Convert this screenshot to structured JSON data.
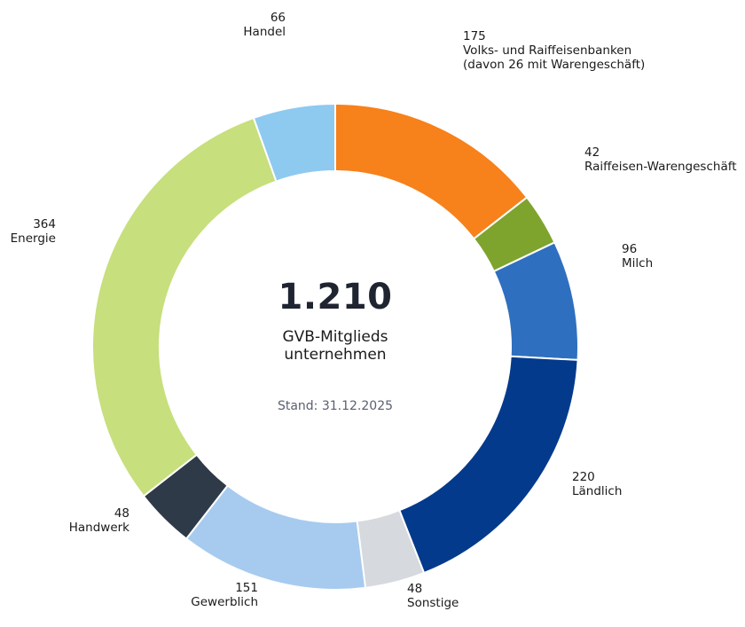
{
  "chart_data": {
    "type": "pie",
    "variant": "donut",
    "center": {
      "total": "1.210",
      "subtitle_line1": "GVB-Mitglieds",
      "subtitle_line2": "unternehmen",
      "stand": "Stand: 31.12.2025"
    },
    "slices": [
      {
        "label": "Volks- und Raiffeisenbanken",
        "label_line2": "(davon 26 mit Warengeschäft)",
        "value": 175,
        "color": "#f7811a"
      },
      {
        "label": "Raiffeisen-Warengeschäft",
        "value": 42,
        "color": "#7ea42d"
      },
      {
        "label": "Milch",
        "value": 96,
        "color": "#2f6fbf"
      },
      {
        "label": "Ländlich",
        "value": 220,
        "color": "#033a8c"
      },
      {
        "label": "Sonstige",
        "value": 48,
        "color": "#d6d9de"
      },
      {
        "label": "Gewerblich",
        "value": 151,
        "color": "#a7cbef"
      },
      {
        "label": "Handwerk",
        "value": 48,
        "color": "#2f3a48"
      },
      {
        "label": "Energie",
        "value": 364,
        "color": "#c7df7c"
      },
      {
        "label": "Handel",
        "value": 66,
        "color": "#8ec9f0"
      }
    ]
  }
}
